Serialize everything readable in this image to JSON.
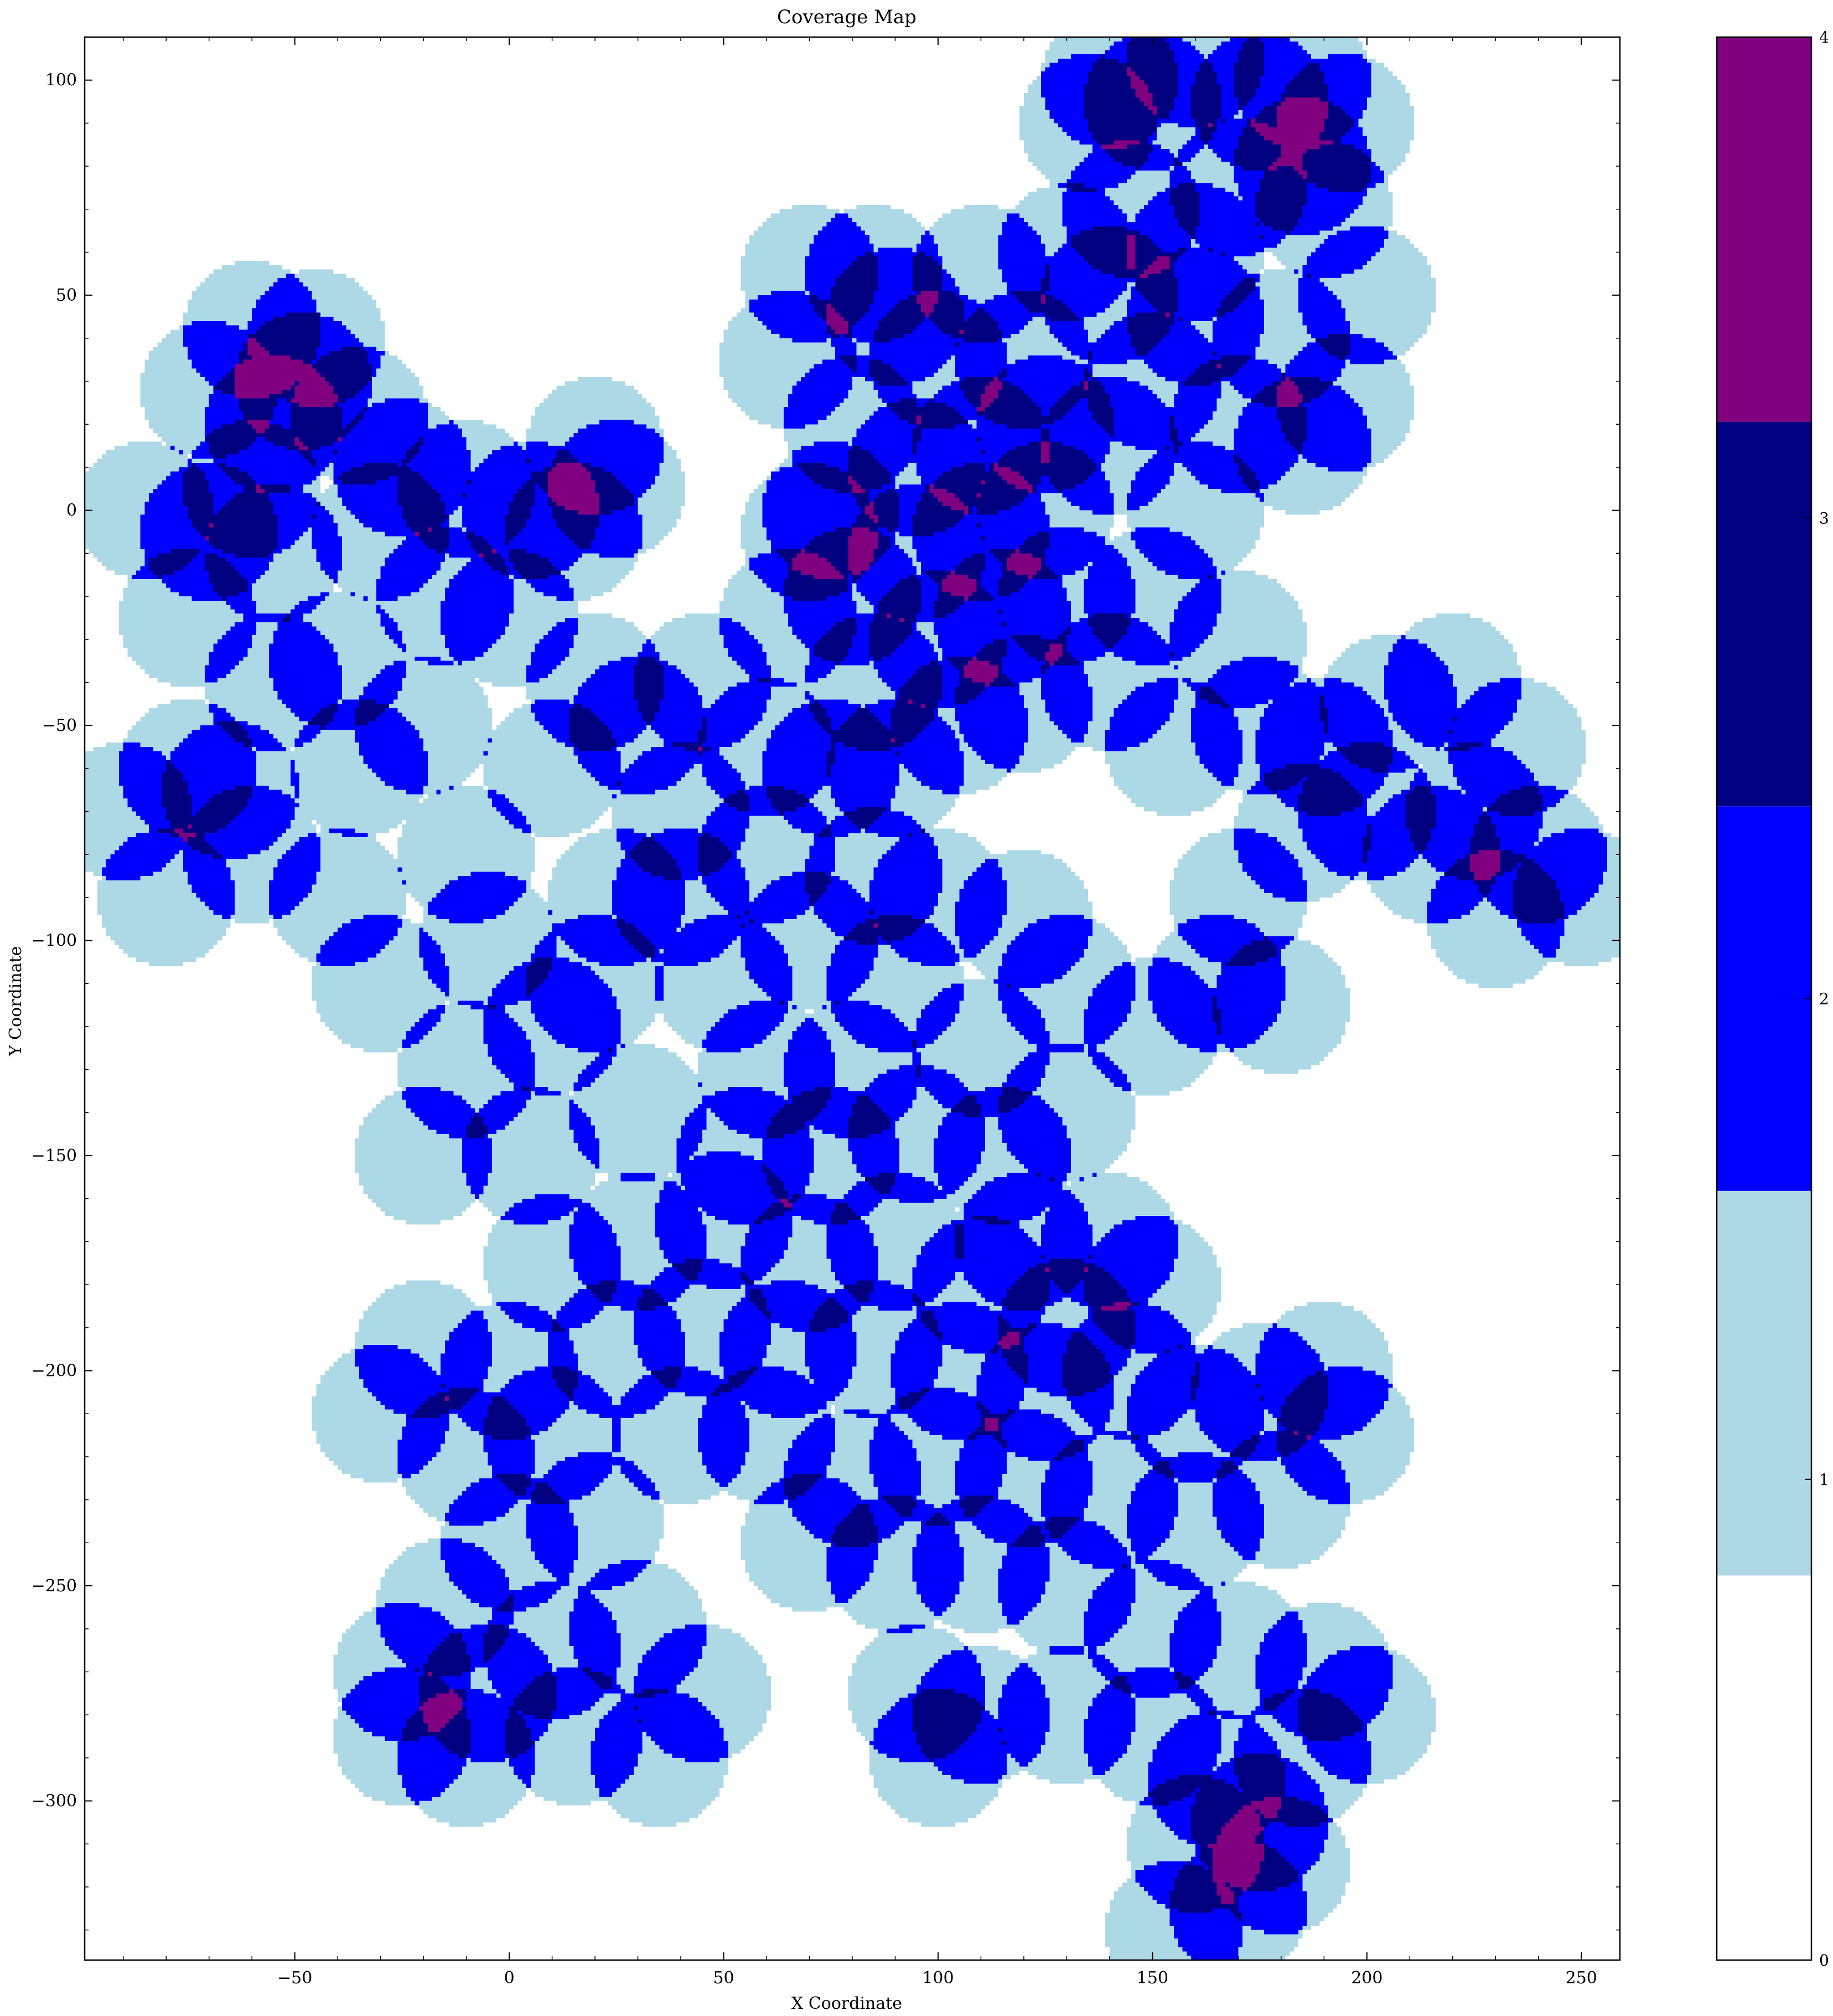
{
  "colors": {
    "level_0": "#ffffff",
    "level_1": "#add8e6",
    "level_2": "#0000ff",
    "level_3": "#000080",
    "level_4": "#800080"
  },
  "chart_data": [
    {
      "type": "heatmap",
      "title": "Coverage Map",
      "xlabel": "X Coordinate",
      "ylabel": "Y Coordinate",
      "xlim": [
        -99,
        259
      ],
      "ylim": [
        -337,
        110
      ],
      "xticks": [
        -50,
        0,
        50,
        100,
        150,
        200,
        250
      ],
      "xtick_labels": [
        "−50",
        "0",
        "50",
        "100",
        "150",
        "200",
        "250"
      ],
      "yticks": [
        100,
        50,
        0,
        -50,
        -100,
        -150,
        -200,
        -250,
        -300
      ],
      "ytick_labels": [
        "100",
        "50",
        "0",
        "−50",
        "−100",
        "−150",
        "−200",
        "−250",
        "−300"
      ],
      "grid": false,
      "description_of_value": "coverage count per grid cell (0-4)",
      "sensor_radius": 16,
      "sensor_centers": [
        [
          -60,
          42
        ],
        [
          -45,
          40
        ],
        [
          -35,
          22
        ],
        [
          -55,
          20
        ],
        [
          -70,
          28
        ],
        [
          -48,
          30
        ],
        [
          -85,
          0
        ],
        [
          -70,
          -5
        ],
        [
          -75,
          -25
        ],
        [
          -55,
          -10
        ],
        [
          -60,
          5
        ],
        [
          -30,
          -5
        ],
        [
          -25,
          10
        ],
        [
          -15,
          -20
        ],
        [
          -10,
          5
        ],
        [
          5,
          0
        ],
        [
          15,
          -5
        ],
        [
          20,
          15
        ],
        [
          25,
          5
        ],
        [
          0,
          -25
        ],
        [
          -40,
          -35
        ],
        [
          -55,
          -40
        ],
        [
          -75,
          -60
        ],
        [
          -90,
          -70
        ],
        [
          -80,
          -90
        ],
        [
          -60,
          -80
        ],
        [
          -65,
          -65
        ],
        [
          -35,
          -60
        ],
        [
          -20,
          -50
        ],
        [
          -10,
          -80
        ],
        [
          -40,
          -90
        ],
        [
          -30,
          -110
        ],
        [
          -5,
          -100
        ],
        [
          10,
          -60
        ],
        [
          20,
          -40
        ],
        [
          30,
          -50
        ],
        [
          45,
          -40
        ],
        [
          60,
          -55
        ],
        [
          40,
          -70
        ],
        [
          25,
          -90
        ],
        [
          10,
          -120
        ],
        [
          -10,
          -130
        ],
        [
          -20,
          -150
        ],
        [
          5,
          -150
        ],
        [
          30,
          -140
        ],
        [
          20,
          -110
        ],
        [
          50,
          -110
        ],
        [
          40,
          -90
        ],
        [
          60,
          -80
        ],
        [
          70,
          55
        ],
        [
          85,
          55
        ],
        [
          90,
          45
        ],
        [
          100,
          35
        ],
        [
          110,
          55
        ],
        [
          120,
          35
        ],
        [
          65,
          35
        ],
        [
          80,
          20
        ],
        [
          95,
          10
        ],
        [
          110,
          15
        ],
        [
          125,
          20
        ],
        [
          140,
          15
        ],
        [
          150,
          30
        ],
        [
          160,
          45
        ],
        [
          140,
          50
        ],
        [
          130,
          60
        ],
        [
          145,
          70
        ],
        [
          160,
          60
        ],
        [
          170,
          75
        ],
        [
          185,
          80
        ],
        [
          195,
          90
        ],
        [
          175,
          95
        ],
        [
          150,
          95
        ],
        [
          135,
          90
        ],
        [
          140,
          100
        ],
        [
          160,
          105
        ],
        [
          185,
          100
        ],
        [
          190,
          70
        ],
        [
          200,
          50
        ],
        [
          180,
          40
        ],
        [
          170,
          20
        ],
        [
          185,
          15
        ],
        [
          195,
          25
        ],
        [
          160,
          0
        ],
        [
          150,
          -20
        ],
        [
          170,
          -30
        ],
        [
          70,
          -5
        ],
        [
          80,
          -20
        ],
        [
          65,
          -25
        ],
        [
          75,
          0
        ],
        [
          95,
          -10
        ],
        [
          110,
          -5
        ],
        [
          125,
          0
        ],
        [
          130,
          -20
        ],
        [
          115,
          -25
        ],
        [
          100,
          -30
        ],
        [
          85,
          -40
        ],
        [
          75,
          -60
        ],
        [
          90,
          -60
        ],
        [
          105,
          -50
        ],
        [
          120,
          -45
        ],
        [
          140,
          -40
        ],
        [
          155,
          -55
        ],
        [
          175,
          -50
        ],
        [
          190,
          -55
        ],
        [
          205,
          -45
        ],
        [
          220,
          -40
        ],
        [
          235,
          -55
        ],
        [
          225,
          -70
        ],
        [
          240,
          -80
        ],
        [
          250,
          -90
        ],
        [
          230,
          -95
        ],
        [
          215,
          -80
        ],
        [
          200,
          -70
        ],
        [
          185,
          -75
        ],
        [
          170,
          -90
        ],
        [
          165,
          -110
        ],
        [
          180,
          -115
        ],
        [
          150,
          -120
        ],
        [
          130,
          -110
        ],
        [
          120,
          -95
        ],
        [
          100,
          -90
        ],
        [
          85,
          -85
        ],
        [
          70,
          -100
        ],
        [
          90,
          -110
        ],
        [
          110,
          -125
        ],
        [
          80,
          -130
        ],
        [
          60,
          -130
        ],
        [
          55,
          -150
        ],
        [
          75,
          -150
        ],
        [
          95,
          -145
        ],
        [
          115,
          -150
        ],
        [
          130,
          -140
        ],
        [
          120,
          -170
        ],
        [
          140,
          -170
        ],
        [
          150,
          -180
        ],
        [
          130,
          -190
        ],
        [
          110,
          -180
        ],
        [
          90,
          -170
        ],
        [
          70,
          -175
        ],
        [
          50,
          -165
        ],
        [
          30,
          -170
        ],
        [
          10,
          -175
        ],
        [
          0,
          -200
        ],
        [
          -20,
          -195
        ],
        [
          -30,
          -210
        ],
        [
          -10,
          -220
        ],
        [
          10,
          -215
        ],
        [
          25,
          -195
        ],
        [
          45,
          -190
        ],
        [
          65,
          -195
        ],
        [
          85,
          -195
        ],
        [
          105,
          -200
        ],
        [
          125,
          -205
        ],
        [
          145,
          -200
        ],
        [
          160,
          -210
        ],
        [
          175,
          -205
        ],
        [
          190,
          -200
        ],
        [
          195,
          -215
        ],
        [
          180,
          -230
        ],
        [
          160,
          -235
        ],
        [
          140,
          -230
        ],
        [
          120,
          -225
        ],
        [
          100,
          -220
        ],
        [
          80,
          -225
        ],
        [
          60,
          -215
        ],
        [
          40,
          -215
        ],
        [
          20,
          -235
        ],
        [
          0,
          -240
        ],
        [
          -15,
          -255
        ],
        [
          -25,
          -270
        ],
        [
          -5,
          -275
        ],
        [
          10,
          -265
        ],
        [
          30,
          -260
        ],
        [
          45,
          -275
        ],
        [
          35,
          -290
        ],
        [
          15,
          -285
        ],
        [
          -10,
          -290
        ],
        [
          -25,
          -285
        ],
        [
          70,
          -240
        ],
        [
          90,
          -245
        ],
        [
          110,
          -245
        ],
        [
          130,
          -250
        ],
        [
          150,
          -260
        ],
        [
          170,
          -265
        ],
        [
          190,
          -270
        ],
        [
          200,
          -280
        ],
        [
          185,
          -290
        ],
        [
          165,
          -295
        ],
        [
          150,
          -285
        ],
        [
          130,
          -280
        ],
        [
          110,
          -280
        ],
        [
          95,
          -275
        ],
        [
          100,
          -290
        ],
        [
          160,
          -310
        ],
        [
          170,
          -325
        ],
        [
          155,
          -330
        ],
        [
          175,
          -305
        ],
        [
          180,
          -315
        ]
      ]
    },
    {
      "type": "heatmap",
      "role": "colorbar",
      "ticks": [
        0,
        1,
        2,
        3,
        4
      ],
      "tick_labels": [
        "0",
        "1",
        "2",
        "3",
        "4"
      ],
      "levels": [
        {
          "value": 0,
          "color": "#ffffff"
        },
        {
          "value": 1,
          "color": "#add8e6"
        },
        {
          "value": 2,
          "color": "#0000ff"
        },
        {
          "value": 3,
          "color": "#000080"
        },
        {
          "value": 4,
          "color": "#800080"
        }
      ]
    }
  ]
}
